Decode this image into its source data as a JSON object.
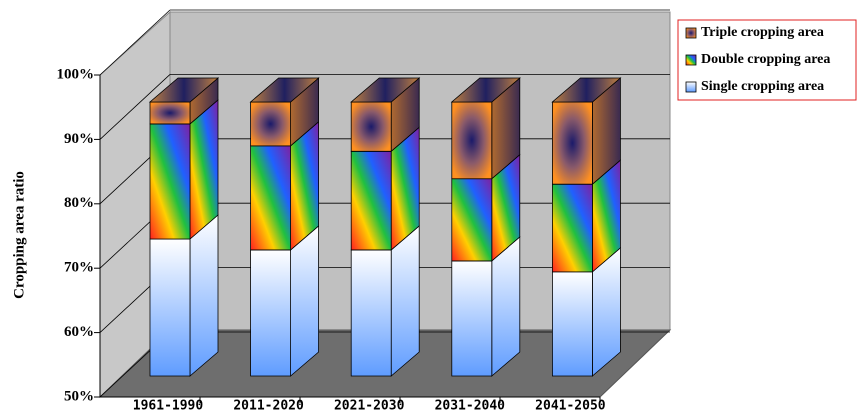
{
  "chart_data": {
    "type": "bar3d",
    "stacked": true,
    "y_label": "Cropping area  ratio",
    "categories": [
      "1961-1990",
      "2011-2020",
      "2021-2030",
      "2031-2040",
      "2041-2050"
    ],
    "series": [
      {
        "name": "Single cropping area",
        "color": "#5f9cff",
        "values": [
          75,
          73,
          73,
          71,
          69
        ]
      },
      {
        "name": "Double cropping area",
        "color": "#ffd000",
        "values": [
          21,
          19,
          18,
          15,
          16
        ]
      },
      {
        "name": "Triple cropping area",
        "color": "#ff9020",
        "values": [
          4,
          8,
          9,
          14,
          15
        ]
      }
    ],
    "ylim": [
      50,
      100
    ],
    "yticks": [
      {
        "value": 50,
        "label": "50%"
      },
      {
        "value": 60,
        "label": "60%"
      },
      {
        "value": 70,
        "label": "70%"
      },
      {
        "value": 80,
        "label": "80%"
      },
      {
        "value": 90,
        "label": "90%"
      },
      {
        "value": 100,
        "label": "100%"
      }
    ],
    "grid": true
  }
}
